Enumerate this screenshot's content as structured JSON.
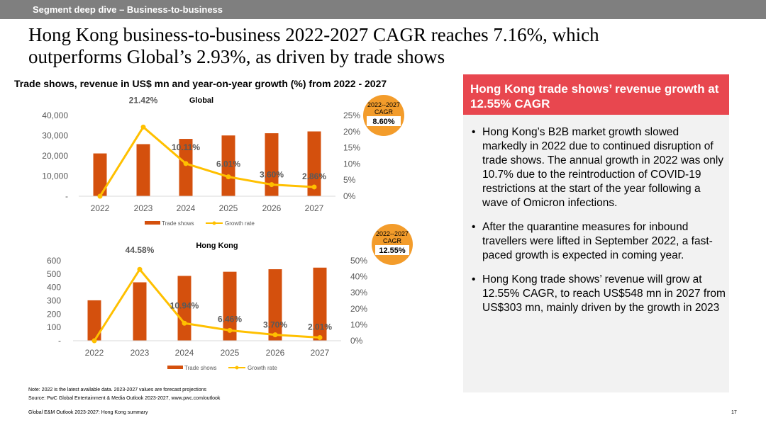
{
  "header": {
    "section": "Segment deep dive – Business-to-business"
  },
  "headline": {
    "line1": "Hong Kong business-to-business 2022-2027 CAGR reaches 7.16%, which",
    "line2": "outperforms Global’s 2.93%, as driven by trade shows"
  },
  "chart_title": "Trade shows, revenue in US$ mn and year-on-year growth (%) from 2022 - 2027",
  "chart_data": [
    {
      "type": "bar",
      "title": "Global",
      "categories": [
        "2022",
        "2023",
        "2024",
        "2025",
        "2026",
        "2027"
      ],
      "series": [
        {
          "name": "Trade shows",
          "values": [
            21200,
            25800,
            28400,
            30100,
            31200,
            32100
          ],
          "axis": "left"
        },
        {
          "name": "Growth rate",
          "type": "line",
          "values": [
            0,
            21.42,
            10.11,
            6.01,
            3.6,
            2.86
          ],
          "axis": "right"
        }
      ],
      "data_labels": [
        "21.42%",
        "10.11%",
        "6.01%",
        "3.60%",
        "2.86%"
      ],
      "y_left": {
        "ylim": [
          0,
          40000
        ],
        "ticks": [
          "-",
          "10,000",
          "20,000",
          "30,000",
          "40,000"
        ]
      },
      "y_right": {
        "ylim": [
          0,
          25
        ],
        "ticks": [
          "0%",
          "5%",
          "10%",
          "15%",
          "20%",
          "25%"
        ]
      },
      "cagr": {
        "label": "2022--2027",
        "sub": "CAGR",
        "value": "8.60%"
      },
      "legend": [
        "Trade shows",
        "Growth rate"
      ],
      "legend_position": "bottom"
    },
    {
      "type": "bar",
      "title": "Hong Kong",
      "categories": [
        "2022",
        "2023",
        "2024",
        "2025",
        "2026",
        "2027"
      ],
      "series": [
        {
          "name": "Trade shows",
          "values": [
            303,
            438,
            486,
            517,
            536,
            548
          ],
          "axis": "left"
        },
        {
          "name": "Growth rate",
          "type": "line",
          "values": [
            0,
            44.58,
            10.94,
            6.46,
            3.7,
            2.01
          ],
          "axis": "right"
        }
      ],
      "data_labels": [
        "44.58%",
        "10.94%",
        "6.46%",
        "3.70%",
        "2.01%"
      ],
      "y_left": {
        "ylim": [
          0,
          600
        ],
        "ticks": [
          "-",
          "100",
          "200",
          "300",
          "400",
          "500",
          "600"
        ]
      },
      "y_right": {
        "ylim": [
          0,
          50
        ],
        "ticks": [
          "0%",
          "10%",
          "20%",
          "30%",
          "40%",
          "50%"
        ]
      },
      "cagr": {
        "label": "2022--2027",
        "sub": "CAGR",
        "value": "12.55%"
      },
      "legend": [
        "Trade shows",
        "Growth rate"
      ],
      "legend_position": "bottom"
    }
  ],
  "colors": {
    "bar": "#d4500d",
    "line": "#ffc000",
    "badge": "#f39c2b",
    "panel_head": "#e8474f"
  },
  "panel": {
    "title": "Hong Kong trade shows’ revenue growth at 12.55% CAGR",
    "bullets": [
      "Hong Kong’s B2B market growth slowed markedly in 2022 due to continued disruption of trade shows. The annual growth in 2022 was only 10.7% due to the reintroduction of COVID-19 restrictions at the start of the year following a wave of Omicron infections.",
      "After the quarantine measures for inbound travellers were lifted in September 2022, a fast-paced growth is expected in coming year.",
      "Hong Kong trade shows’ revenue will grow at 12.55% CAGR, to reach US$548 mn in 2027 from US$303 mn, mainly driven by the growth in 2023"
    ]
  },
  "notes": {
    "note": "Note: 2022 is the latest available data. 2023-2027 values are forecast projections",
    "source": "Source: PwC Global Entertainment & Media Outlook 2023-2027, www.pwc.com/outlook"
  },
  "footer": {
    "text": "Global E&M Outlook 2023-2027: Hong Kong summary",
    "page": "17"
  }
}
